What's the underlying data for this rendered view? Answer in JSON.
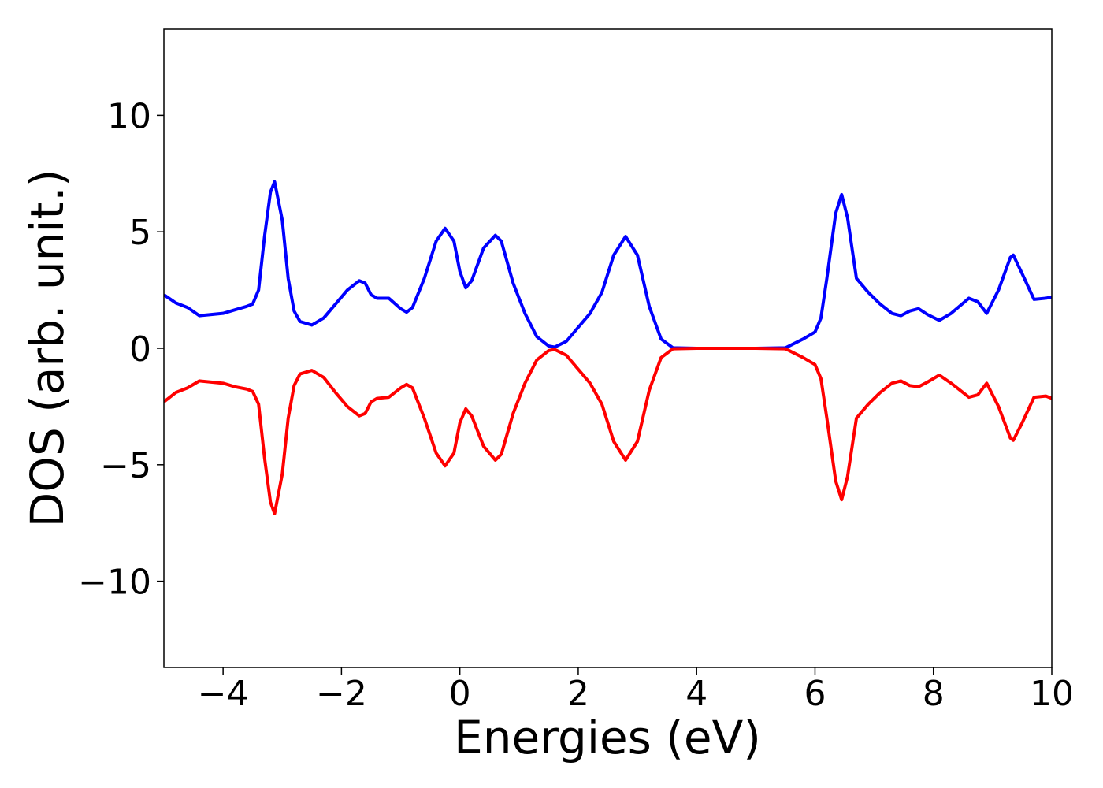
{
  "chart_data": {
    "type": "line",
    "x_label": "Energies (eV)",
    "y_label": "DOS (arb. unit.)",
    "xlim": [
      -5,
      10
    ],
    "ylim": [
      -13.7,
      13.7
    ],
    "xticks": [
      {
        "value": -4,
        "label": "−4"
      },
      {
        "value": -2,
        "label": "−2"
      },
      0,
      2,
      4,
      6,
      8,
      10
    ],
    "yticks": [
      {
        "value": -10,
        "label": "−10"
      },
      {
        "value": -5,
        "label": "−5"
      },
      0,
      5,
      10
    ],
    "grid": false,
    "x": [
      -5,
      -4.8,
      -4.6,
      -4.4,
      -4.2,
      -4.0,
      -3.8,
      -3.6,
      -3.5,
      -3.4,
      -3.3,
      -3.2,
      -3.13,
      -3.0,
      -2.9,
      -2.8,
      -2.7,
      -2.5,
      -2.3,
      -2.1,
      -1.9,
      -1.7,
      -1.6,
      -1.5,
      -1.4,
      -1.2,
      -1.0,
      -0.9,
      -0.8,
      -0.6,
      -0.4,
      -0.25,
      -0.1,
      0.0,
      0.1,
      0.2,
      0.4,
      0.6,
      0.7,
      0.9,
      1.1,
      1.3,
      1.5,
      1.6,
      1.8,
      2.0,
      2.2,
      2.4,
      2.6,
      2.8,
      3.0,
      3.2,
      3.4,
      3.6,
      4.0,
      5.0,
      5.5,
      5.8,
      6.0,
      6.1,
      6.2,
      6.35,
      6.45,
      6.55,
      6.7,
      6.9,
      7.1,
      7.3,
      7.45,
      7.6,
      7.75,
      7.9,
      8.1,
      8.3,
      8.6,
      8.75,
      8.9,
      9.1,
      9.3,
      9.35,
      9.5,
      9.7,
      9.9,
      10.0
    ],
    "series": [
      {
        "color": "#0000ff",
        "values": [
          2.3,
          1.95,
          1.75,
          1.4,
          1.45,
          1.5,
          1.65,
          1.8,
          1.9,
          2.5,
          4.8,
          6.7,
          7.15,
          5.5,
          3.0,
          1.6,
          1.15,
          1.0,
          1.3,
          1.9,
          2.5,
          2.9,
          2.8,
          2.3,
          2.15,
          2.15,
          1.7,
          1.55,
          1.75,
          3.0,
          4.6,
          5.15,
          4.6,
          3.3,
          2.6,
          2.9,
          4.3,
          4.85,
          4.6,
          2.8,
          1.5,
          0.5,
          0.1,
          0.05,
          0.3,
          0.9,
          1.5,
          2.4,
          4.0,
          4.8,
          4.0,
          1.8,
          0.4,
          0.02,
          0,
          0,
          0.02,
          0.4,
          0.7,
          1.3,
          3.0,
          5.8,
          6.6,
          5.6,
          3.0,
          2.4,
          1.9,
          1.5,
          1.4,
          1.6,
          1.7,
          1.45,
          1.2,
          1.5,
          2.15,
          2.0,
          1.5,
          2.5,
          3.9,
          4.0,
          3.2,
          2.1,
          2.15,
          2.2
        ]
      },
      {
        "color": "#ff0000",
        "values": [
          -2.3,
          -1.9,
          -1.7,
          -1.4,
          -1.45,
          -1.5,
          -1.65,
          -1.75,
          -1.85,
          -2.4,
          -4.7,
          -6.6,
          -7.1,
          -5.4,
          -3.0,
          -1.6,
          -1.1,
          -0.95,
          -1.25,
          -1.9,
          -2.5,
          -2.9,
          -2.8,
          -2.3,
          -2.15,
          -2.1,
          -1.7,
          -1.55,
          -1.7,
          -3.0,
          -4.5,
          -5.05,
          -4.5,
          -3.2,
          -2.6,
          -2.9,
          -4.2,
          -4.8,
          -4.55,
          -2.8,
          -1.5,
          -0.5,
          -0.1,
          -0.05,
          -0.3,
          -0.9,
          -1.5,
          -2.4,
          -4.0,
          -4.8,
          -4.0,
          -1.8,
          -0.4,
          -0.02,
          0,
          0,
          -0.02,
          -0.4,
          -0.7,
          -1.3,
          -3.0,
          -5.7,
          -6.5,
          -5.5,
          -3.0,
          -2.4,
          -1.9,
          -1.5,
          -1.4,
          -1.6,
          -1.65,
          -1.45,
          -1.15,
          -1.5,
          -2.1,
          -2.0,
          -1.5,
          -2.5,
          -3.85,
          -3.95,
          -3.2,
          -2.1,
          -2.05,
          -2.15
        ]
      }
    ]
  }
}
